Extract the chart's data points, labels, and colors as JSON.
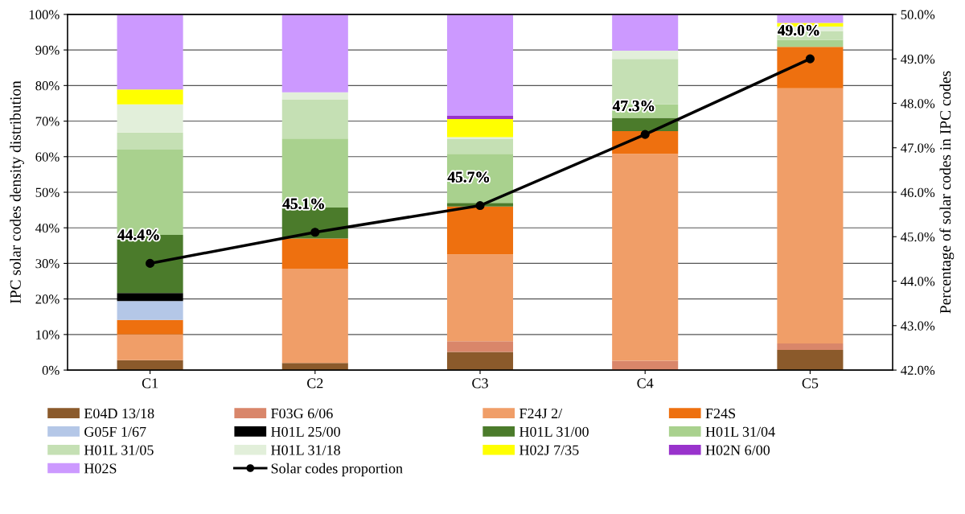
{
  "chart_data": {
    "type": "bar",
    "stacked": true,
    "categories": [
      "C1",
      "C2",
      "C3",
      "C4",
      "C5"
    ],
    "ylabel": "IPC solar codes density distribution",
    "y2label": "Percentage of solar codes in IPC codes",
    "ylim": [
      0,
      100
    ],
    "yticks": [
      {
        "value": 0,
        "label": "0%"
      },
      {
        "value": 10,
        "label": "10%"
      },
      {
        "value": 20,
        "label": "20%"
      },
      {
        "value": 30,
        "label": "30%"
      },
      {
        "value": 40,
        "label": "40%"
      },
      {
        "value": 50,
        "label": "50%"
      },
      {
        "value": 60,
        "label": "60%"
      },
      {
        "value": 70,
        "label": "70%"
      },
      {
        "value": 80,
        "label": "80%"
      },
      {
        "value": 90,
        "label": "90%"
      },
      {
        "value": 100,
        "label": "100%"
      }
    ],
    "y2lim": [
      42,
      50
    ],
    "y2ticks": [
      {
        "value": 42,
        "label": "42.0%"
      },
      {
        "value": 43,
        "label": "43.0%"
      },
      {
        "value": 44,
        "label": "44.0%"
      },
      {
        "value": 45,
        "label": "45.0%"
      },
      {
        "value": 46,
        "label": "46.0%"
      },
      {
        "value": 47,
        "label": "47.0%"
      },
      {
        "value": 48,
        "label": "48.0%"
      },
      {
        "value": 49,
        "label": "49.0%"
      },
      {
        "value": 50,
        "label": "50.0%"
      }
    ],
    "grid": "y",
    "legend": "bottom",
    "series": [
      {
        "name": "E04D 13/18",
        "color": "#8b5a2b",
        "values": [
          2.8,
          2.0,
          5.1,
          0,
          5.7
        ]
      },
      {
        "name": "F03G 6/06",
        "color": "#d9866a",
        "values": [
          0,
          0,
          3.0,
          2.6,
          1.8
        ]
      },
      {
        "name": "F24J 2/",
        "color": "#f09e68",
        "values": [
          7.2,
          26.5,
          24.4,
          58.2,
          71.7
        ]
      },
      {
        "name": "F24S",
        "color": "#ee700f",
        "values": [
          4.1,
          8.5,
          13.5,
          6.4,
          11.7
        ]
      },
      {
        "name": "G05F 1/67",
        "color": "#b4c7e7",
        "values": [
          5.3,
          0,
          0,
          0,
          0
        ]
      },
      {
        "name": "H01L 25/00",
        "color": "#000000",
        "values": [
          2.3,
          0,
          0,
          0,
          0
        ]
      },
      {
        "name": "H01L 31/00",
        "color": "#4b7b2b",
        "values": [
          16.3,
          8.7,
          1.0,
          3.7,
          0
        ]
      },
      {
        "name": "H01L 31/04",
        "color": "#a9d18e",
        "values": [
          24.0,
          19.4,
          13.8,
          3.8,
          1.9
        ]
      },
      {
        "name": "H01L 31/05",
        "color": "#c5e0b4",
        "values": [
          4.8,
          11.0,
          4.1,
          12.8,
          2.5
        ]
      },
      {
        "name": "H01L 31/18",
        "color": "#e2efda",
        "values": [
          7.9,
          2.0,
          0.6,
          2.3,
          1.3
        ]
      },
      {
        "name": "H02J 7/35",
        "color": "#ffff00",
        "values": [
          4.2,
          0,
          5.1,
          0,
          1.0
        ]
      },
      {
        "name": "H02N 6/00",
        "color": "#9933cc",
        "values": [
          0,
          0,
          0.9,
          0,
          0
        ]
      },
      {
        "name": "H02S",
        "color": "#cc99ff",
        "values": [
          21.1,
          21.9,
          28.5,
          10.2,
          2.4
        ]
      },
      {
        "name": "Solar codes proportion",
        "type": "line",
        "axis": "y2",
        "color": "#000000",
        "marker": "circle",
        "line_style": "solid",
        "data_labels": true,
        "value_labels": [
          "44.4%",
          "45.1%",
          "45.7%",
          "47.3%",
          "49.0%"
        ],
        "values": [
          44.4,
          45.1,
          45.7,
          47.3,
          49.0
        ]
      }
    ]
  }
}
